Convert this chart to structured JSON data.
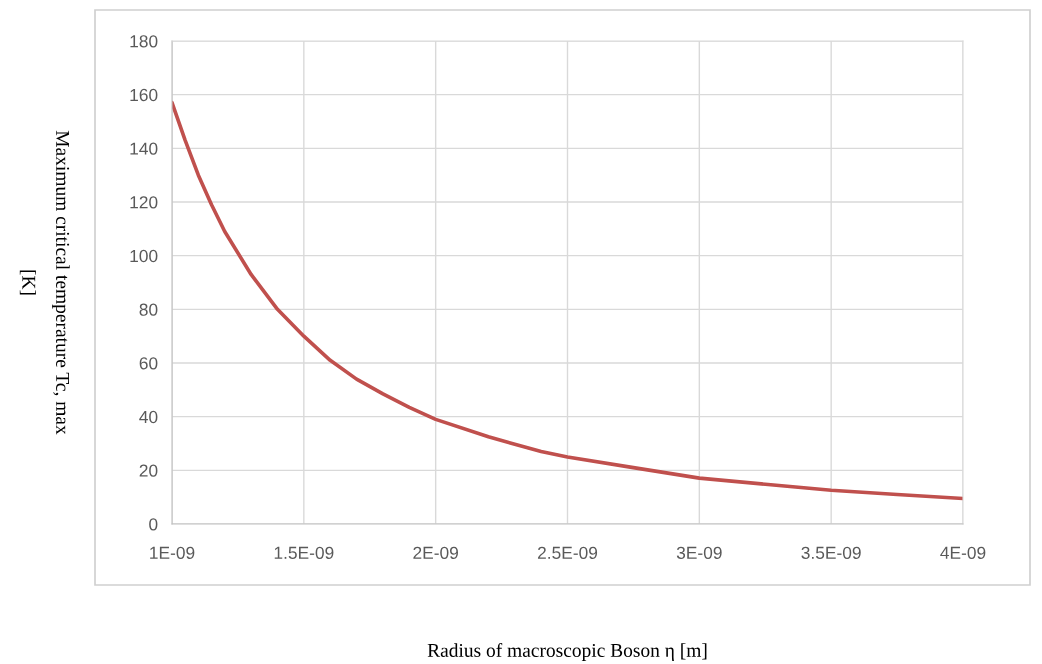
{
  "chart_data": {
    "type": "line",
    "xlabel": "Radius of macroscopic Boson η [m]",
    "ylabel": "Maximum critical temperature Tc, max\n[K]",
    "x": [
      1e-09,
      1.05e-09,
      1.1e-09,
      1.15e-09,
      1.2e-09,
      1.3e-09,
      1.4e-09,
      1.5e-09,
      1.6e-09,
      1.7e-09,
      1.8e-09,
      1.9e-09,
      2e-09,
      2.2e-09,
      2.4e-09,
      2.5e-09,
      2.75e-09,
      3e-09,
      3.25e-09,
      3.5e-09,
      3.75e-09,
      4e-09
    ],
    "series": [
      {
        "color": "#c0504d",
        "values": [
          157,
          143,
          130,
          119,
          109,
          93,
          80,
          70,
          61,
          54,
          48.5,
          43.5,
          39,
          32.5,
          27,
          25,
          21,
          17.1,
          14.8,
          12.6,
          11,
          9.5
        ]
      }
    ],
    "xlim": [
      1e-09,
      4e-09
    ],
    "xticks": [
      {
        "value": 1e-09,
        "label": "1E-09"
      },
      {
        "value": 1.5e-09,
        "label": "1.5E-09"
      },
      {
        "value": 2e-09,
        "label": "2E-09"
      },
      {
        "value": 2.5e-09,
        "label": "2.5E-09"
      },
      {
        "value": 3e-09,
        "label": "3E-09"
      },
      {
        "value": 3.5e-09,
        "label": "3.5E-09"
      },
      {
        "value": 4e-09,
        "label": "4E-09"
      }
    ],
    "ylim": [
      0,
      180
    ],
    "yticks": [
      0,
      20,
      40,
      60,
      80,
      100,
      120,
      140,
      160,
      180
    ],
    "grid": true,
    "marker": "none",
    "line_style": "solid"
  }
}
